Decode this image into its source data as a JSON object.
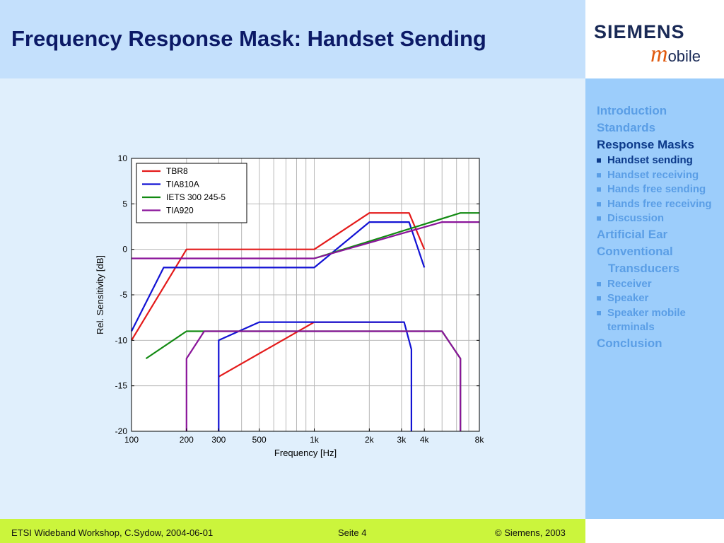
{
  "header": {
    "title": "Frequency Response Mask: Handset Sending"
  },
  "logo": {
    "brand": "SIEMENS",
    "m": "m",
    "mobile_rest": "obile"
  },
  "sidebar": {
    "items": [
      {
        "label": "Introduction",
        "level": 0,
        "active": false
      },
      {
        "label": "Standards",
        "level": 0,
        "active": false
      },
      {
        "label": "Response Masks",
        "level": 0,
        "active": true
      },
      {
        "label": "Handset sending",
        "level": 1,
        "active": true
      },
      {
        "label": "Handset receiving",
        "level": 1,
        "active": false
      },
      {
        "label": "Hands free sending",
        "level": 1,
        "active": false
      },
      {
        "label": "Hands free receiving",
        "level": 1,
        "active": false
      },
      {
        "label": "Discussion",
        "level": 1,
        "active": false
      },
      {
        "label": "Artificial Ear",
        "level": 0,
        "active": false
      },
      {
        "label": "Conventional",
        "level": 0,
        "active": false
      },
      {
        "label": "Transducers",
        "level": 0,
        "active": false,
        "indent": true
      },
      {
        "label": "Receiver",
        "level": 1,
        "active": false
      },
      {
        "label": "Speaker",
        "level": 1,
        "active": false
      },
      {
        "label": "Speaker mobile terminals",
        "level": 1,
        "active": false
      },
      {
        "label": "Conclusion",
        "level": 0,
        "active": false
      }
    ]
  },
  "footer": {
    "left": "ETSI Wideband Workshop, C.Sydow, 2004-06-01",
    "middle": "Seite 4",
    "right": "©  Siemens, 2003"
  },
  "chart_data": {
    "type": "line",
    "xscale": "log",
    "xlim": [
      100,
      8000
    ],
    "ylim": [
      -20,
      10
    ],
    "xlabel": "Frequency [Hz]",
    "ylabel": "Rel. Sensitivity [dB]",
    "x_ticks": [
      {
        "value": 100,
        "label": "100"
      },
      {
        "value": 200,
        "label": "200"
      },
      {
        "value": 300,
        "label": "300"
      },
      {
        "value": 500,
        "label": "500"
      },
      {
        "value": 1000,
        "label": "1k"
      },
      {
        "value": 2000,
        "label": "2k"
      },
      {
        "value": 3000,
        "label": "3k"
      },
      {
        "value": 4000,
        "label": "4k"
      },
      {
        "value": 8000,
        "label": "8k"
      }
    ],
    "y_ticks": [
      10,
      5,
      0,
      -5,
      -10,
      -15,
      -20
    ],
    "grid": {
      "x": "minor-log",
      "y": "major"
    },
    "legend_position": "top-left",
    "series": [
      {
        "name": "TBR8",
        "color": "#e41a1a",
        "segments": [
          [
            [
              100,
              -10
            ],
            [
              200,
              0
            ],
            [
              1000,
              0
            ],
            [
              2000,
              4
            ],
            [
              3300,
              4
            ],
            [
              4000,
              0
            ]
          ],
          [
            [
              300,
              -14
            ],
            [
              1000,
              -8
            ],
            [
              3000,
              -8
            ]
          ]
        ]
      },
      {
        "name": "TIA810A",
        "color": "#1212d4",
        "segments": [
          [
            [
              100,
              -9
            ],
            [
              150,
              -2
            ],
            [
              1000,
              -2
            ],
            [
              2000,
              3
            ],
            [
              3300,
              3
            ],
            [
              4000,
              -2
            ]
          ],
          [
            [
              300,
              -20
            ],
            [
              300,
              -10
            ],
            [
              500,
              -8
            ],
            [
              3100,
              -8
            ],
            [
              3400,
              -11
            ],
            [
              3400,
              -20
            ]
          ]
        ]
      },
      {
        "name": "IETS 300 245-5",
        "color": "#128a12",
        "segments": [
          [
            [
              120,
              -12
            ],
            [
              200,
              -9
            ],
            [
              5000,
              -9
            ],
            [
              6300,
              -12
            ],
            [
              6300,
              -20
            ]
          ],
          [
            [
              1000,
              -1
            ],
            [
              6300,
              4
            ],
            [
              8000,
              4
            ]
          ]
        ]
      },
      {
        "name": "TIA920",
        "color": "#8a149a",
        "segments": [
          [
            [
              100,
              -1
            ],
            [
              1000,
              -1
            ],
            [
              5000,
              3
            ],
            [
              8000,
              3
            ]
          ],
          [
            [
              200,
              -20
            ],
            [
              200,
              -12
            ],
            [
              250,
              -9
            ],
            [
              5000,
              -9
            ],
            [
              6300,
              -12
            ],
            [
              6300,
              -20
            ]
          ]
        ]
      }
    ]
  }
}
